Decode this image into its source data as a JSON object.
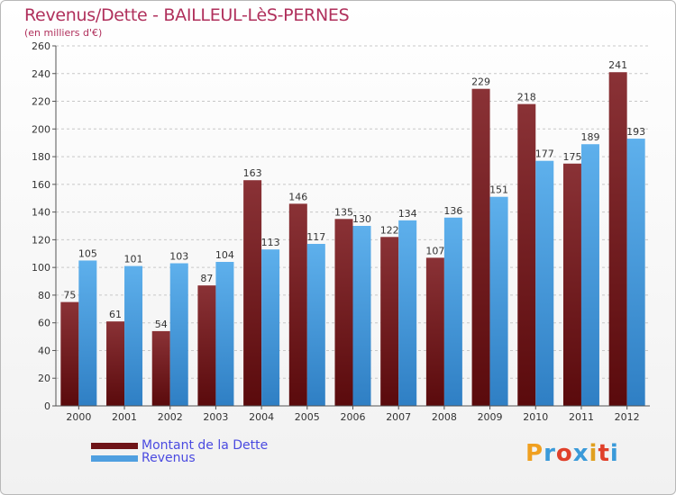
{
  "header": {
    "title": "Revenus/Dette - BAILLEUL-LèS-PERNES",
    "subtitle": "(en milliers d'€)"
  },
  "legend": [
    {
      "label": "Montant de la Dette",
      "color": "#6e1418"
    },
    {
      "label": "Revenus",
      "color": "#4f9fe0"
    }
  ],
  "logo": {
    "text": "Proxiti",
    "letter_colors": [
      "#f0a020",
      "#3a9ad9",
      "#e0402a",
      "#3a9ad9",
      "#e0a020",
      "#e0402a",
      "#3a9ad9"
    ]
  },
  "chart_data": {
    "type": "bar",
    "title": "Revenus/Dette - BAILLEUL-LèS-PERNES",
    "subtitle": "(en milliers d'€)",
    "categories": [
      "2000",
      "2001",
      "2002",
      "2003",
      "2004",
      "2005",
      "2006",
      "2007",
      "2008",
      "2009",
      "2010",
      "2011",
      "2012"
    ],
    "series": [
      {
        "name": "Montant de la Dette",
        "color": "#7a2226",
        "values": [
          75,
          61,
          54,
          87,
          163,
          146,
          135,
          122,
          107,
          229,
          218,
          175,
          241
        ]
      },
      {
        "name": "Revenus",
        "color": "#4f9fe0",
        "values": [
          105,
          101,
          103,
          104,
          113,
          117,
          130,
          134,
          136,
          151,
          177,
          189,
          193
        ]
      }
    ],
    "yticks": [
      0,
      20,
      40,
      60,
      80,
      100,
      120,
      140,
      160,
      180,
      200,
      220,
      240,
      260
    ],
    "ylim": [
      0,
      260
    ],
    "grid": true,
    "legend_position": "bottom-left"
  }
}
